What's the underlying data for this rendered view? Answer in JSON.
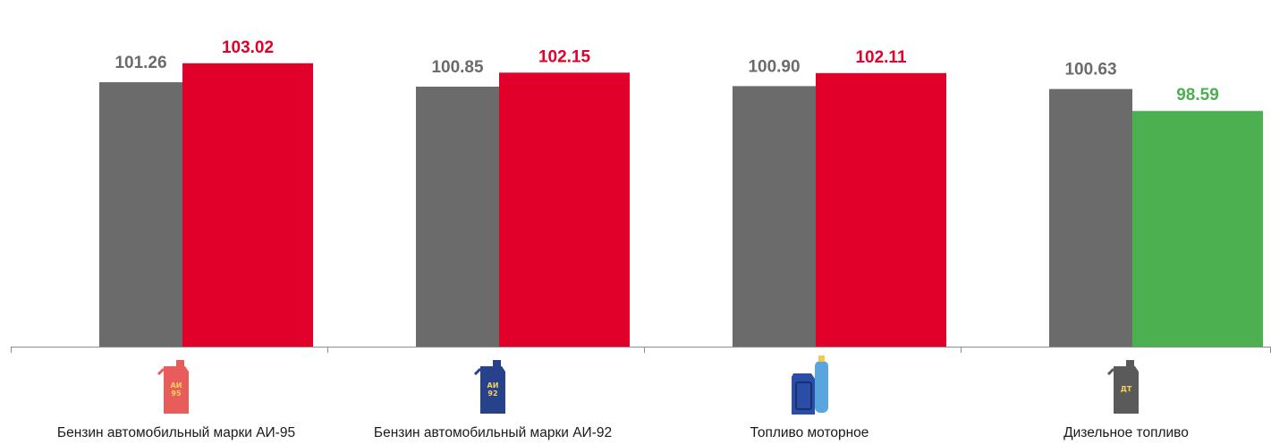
{
  "chart_data": {
    "type": "bar",
    "categories": [
      "Бензин автомобильный марки АИ-95",
      "Бензин автомобильный марки АИ-92",
      "Топливо моторное",
      "Дизельное топливо"
    ],
    "series": [
      {
        "values": [
          101.26,
          100.85,
          100.9,
          100.63
        ],
        "color": "#6b6b6b",
        "label_color": "#6b6b6b"
      },
      {
        "values": [
          103.02,
          102.15,
          102.11,
          98.59
        ],
        "colors": [
          "#e0002a",
          "#e0002a",
          "#e0002a",
          "#4caf50"
        ],
        "label_colors": [
          "#e0002a",
          "#e0002a",
          "#e0002a",
          "#4caf50"
        ]
      }
    ],
    "value_labels": [
      [
        "101.26",
        "103.02"
      ],
      [
        "100.85",
        "102.15"
      ],
      [
        "100.90",
        "102.11"
      ],
      [
        "100.63",
        "98.59"
      ]
    ],
    "title": "",
    "xlabel": "",
    "ylabel": "",
    "ylim": [
      76.7,
      104.0
    ],
    "grid": false,
    "legend": "none",
    "icons": [
      {
        "name": "canister-ai95-icon",
        "color": "#e85c5c",
        "text_lines": [
          "АИ",
          "95"
        ],
        "text_color": "#f7d35b"
      },
      {
        "name": "canister-ai92-icon",
        "color": "#27418a",
        "text_lines": [
          "АИ",
          "92"
        ],
        "text_color": "#f7d35b"
      },
      {
        "name": "canister-gas-cylinder-icon",
        "color": "#2a4ea8",
        "text_lines": [],
        "text_color": ""
      },
      {
        "name": "canister-dt-icon",
        "color": "#5a5a5a",
        "text_lines": [
          "ДТ"
        ],
        "text_color": "#f7d35b"
      }
    ]
  }
}
